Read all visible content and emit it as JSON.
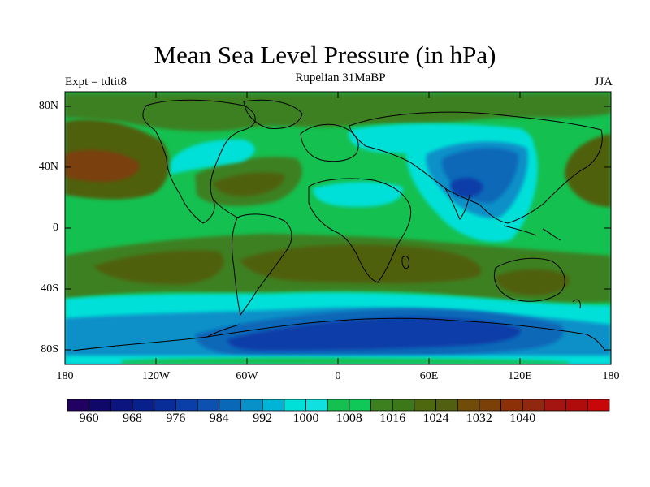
{
  "title": "Mean Sea Level Pressure (in hPa)",
  "subtitle": "Rupelian  31MaBP",
  "experiment": "Expt = tdtit8",
  "season": "JJA",
  "lat_labels": [
    "80N",
    "40N",
    "0",
    "40S",
    "80S"
  ],
  "lon_labels": [
    "180",
    "120W",
    "60W",
    "0",
    "60E",
    "120E",
    "180"
  ],
  "colorbar": {
    "labels": [
      "960",
      "968",
      "976",
      "984",
      "992",
      "1000",
      "1008",
      "1016",
      "1024",
      "1032",
      "1040"
    ],
    "colors": [
      "#200060",
      "#100868",
      "#0c1480",
      "#08208c",
      "#082c98",
      "#0a3ea8",
      "#0c50b0",
      "#0a68b8",
      "#0890c8",
      "#00b4d8",
      "#00e0d8",
      "#10e0e0",
      "#14c050",
      "#10c858",
      "#3c8020",
      "#3c7818",
      "#4e6810",
      "#506010",
      "#704c08",
      "#7a4008",
      "#8c3008",
      "#902810",
      "#a41410",
      "#b00c0c",
      "#c80808"
    ]
  },
  "palette": {
    "deep_blue": "#0a3ea8",
    "blue": "#0a68b8",
    "light_blue": "#0890c8",
    "cyan": "#00e0d8",
    "green": "#14c050",
    "dark_green": "#3c8020",
    "olive": "#506010",
    "brown": "#7a4008"
  }
}
